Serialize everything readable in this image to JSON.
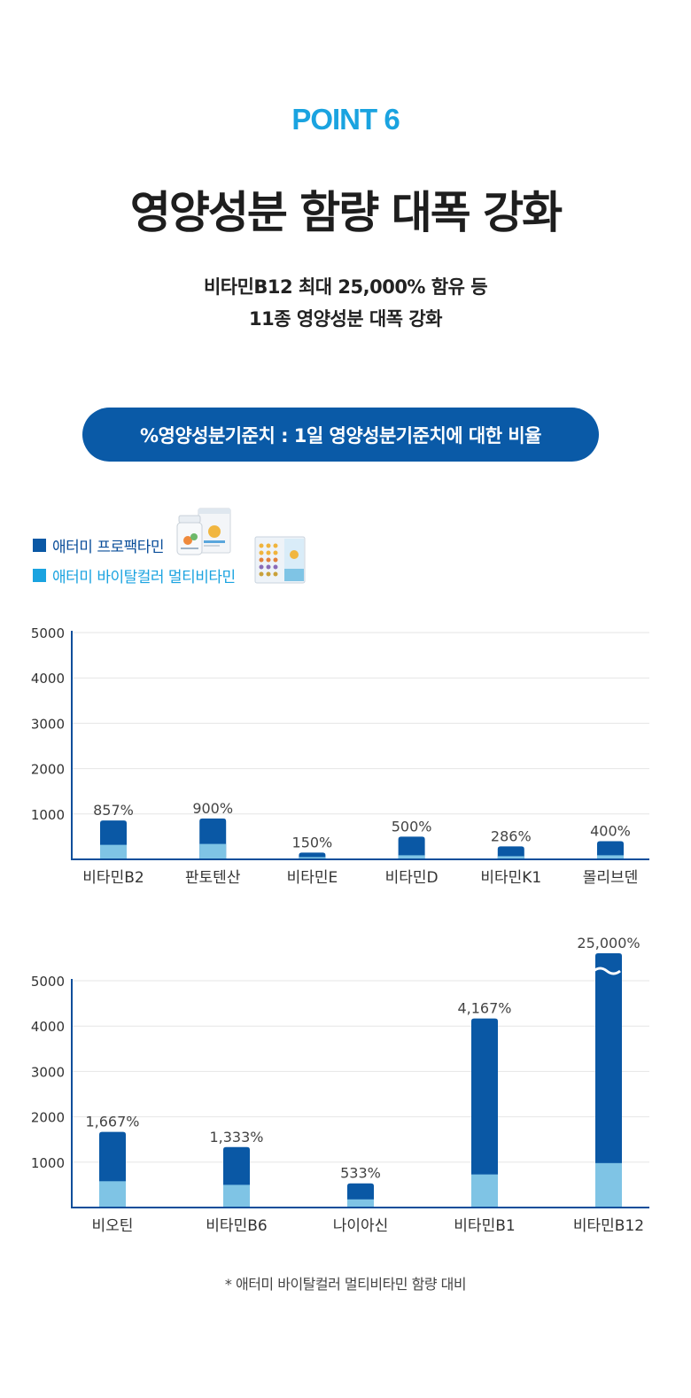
{
  "header": {
    "point": "POINT 6",
    "title": "영양성분 함량 대폭 강화",
    "subtitle_line1": "비타민B12 최대 25,000% 함유 등",
    "subtitle_line2": "11종 영양성분 대폭 강화",
    "pill": "%영양성분기준치 : 1일 영양성분기준치에 대한 비율"
  },
  "legend": [
    {
      "label": "애터미 프로팩타민",
      "color": "#0a58a5",
      "icon": "bottle-box-product-image"
    },
    {
      "label": "애터미 바이탈컬러 멀티비타민",
      "color": "#1aa3e0",
      "icon": "blister-pack-product-image"
    }
  ],
  "colors": {
    "series1": "#0a58a5",
    "series2": "#7fc4e5",
    "axis": "#0a4e9a",
    "grid": "#e6e6e6"
  },
  "chart_data": [
    {
      "type": "bar",
      "ylim": [
        0,
        5000
      ],
      "yticks": [
        1000,
        2000,
        3000,
        4000,
        5000
      ],
      "grid": true,
      "categories": [
        "비타민B2",
        "판토텐산",
        "비타민E",
        "비타민D",
        "비타민K1",
        "몰리브덴"
      ],
      "series": [
        {
          "name": "애터미 프로팩타민",
          "values": [
            857,
            900,
            150,
            500,
            286,
            400
          ]
        },
        {
          "name": "애터미 바이탈컬러 멀티비타민",
          "values": [
            320,
            340,
            50,
            90,
            70,
            90
          ]
        }
      ],
      "data_labels": [
        "857%",
        "900%",
        "150%",
        "500%",
        "286%",
        "400%"
      ]
    },
    {
      "type": "bar",
      "ylim": [
        0,
        5000
      ],
      "yticks": [
        1000,
        2000,
        3000,
        4000,
        5000
      ],
      "grid": true,
      "axis_break": "비타민B12",
      "categories": [
        "비오틴",
        "비타민B6",
        "나이아신",
        "비타민B1",
        "비타민B12"
      ],
      "series": [
        {
          "name": "애터미 프로팩타민",
          "values": [
            1667,
            1333,
            533,
            4167,
            25000
          ]
        },
        {
          "name": "애터미 바이탈컬러 멀티비타민",
          "values": [
            580,
            500,
            180,
            730,
            980
          ]
        }
      ],
      "data_labels": [
        "1,667%",
        "1,333%",
        "533%",
        "4,167%",
        "25,000%"
      ]
    }
  ],
  "footnote": "* 애터미 바이탈컬러 멀티비타민 함량 대비"
}
